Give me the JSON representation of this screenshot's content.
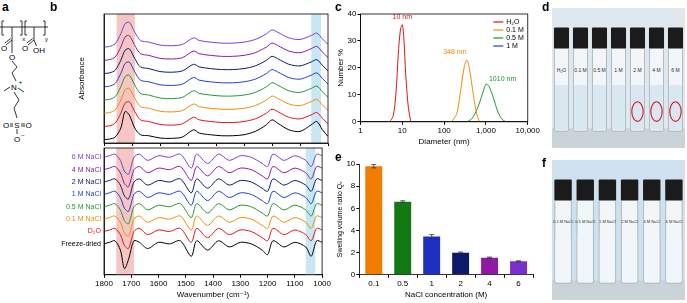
{
  "panel_labels": [
    "a",
    "b",
    "c",
    "d",
    "e",
    "f"
  ],
  "structure": {
    "texts": [
      "O",
      "O",
      "O",
      "OH",
      "N",
      "+",
      "S",
      "O",
      "O",
      "O",
      "−",
      "x",
      "y"
    ]
  },
  "chart_data": [
    {
      "type": "line",
      "xlim": [
        1800,
        1000
      ],
      "xticks": [
        1800,
        1700,
        1600,
        1500,
        1400,
        1300,
        1200,
        1100,
        1000
      ],
      "ylim": [
        0,
        3.9
      ],
      "ylabel": "Absorbance",
      "tick_labels": false,
      "highlights": [
        {
          "xlim": [
            1755,
            1690
          ],
          "color": "#f5c6c3"
        },
        {
          "xlim": [
            1060,
            1025
          ],
          "color": "#c9e6f4"
        }
      ],
      "x": [
        1800,
        1780,
        1760,
        1740,
        1725,
        1710,
        1690,
        1670,
        1640,
        1600,
        1560,
        1520,
        1480,
        1460,
        1420,
        1380,
        1340,
        1300,
        1260,
        1220,
        1200,
        1180,
        1140,
        1100,
        1060,
        1040,
        1020,
        1000
      ],
      "series": [
        {
          "color": "#000000",
          "values": [
            0.1,
            0.12,
            0.18,
            0.45,
            0.95,
            0.85,
            0.45,
            0.25,
            0.22,
            0.15,
            0.14,
            0.18,
            0.4,
            0.3,
            0.25,
            0.22,
            0.22,
            0.25,
            0.35,
            0.55,
            0.7,
            0.6,
            0.4,
            0.35,
            0.55,
            0.65,
            0.4,
            0.2
          ]
        },
        {
          "color": "#e4141b",
          "values": [
            0.5,
            0.52,
            0.6,
            0.9,
            1.2,
            1.25,
            0.95,
            0.7,
            0.65,
            0.56,
            0.54,
            0.58,
            0.78,
            0.7,
            0.65,
            0.62,
            0.62,
            0.65,
            0.73,
            0.9,
            1.02,
            0.95,
            0.78,
            0.73,
            0.85,
            0.92,
            0.75,
            0.58
          ]
        },
        {
          "color": "#f28c00",
          "values": [
            0.9,
            0.92,
            1.0,
            1.3,
            1.6,
            1.65,
            1.35,
            1.1,
            1.05,
            0.96,
            0.94,
            0.98,
            1.18,
            1.1,
            1.05,
            1.02,
            1.02,
            1.05,
            1.13,
            1.3,
            1.42,
            1.35,
            1.18,
            1.13,
            1.25,
            1.32,
            1.15,
            0.98
          ]
        },
        {
          "color": "#1f9a2e",
          "values": [
            1.3,
            1.32,
            1.4,
            1.7,
            2.0,
            2.05,
            1.75,
            1.5,
            1.45,
            1.36,
            1.34,
            1.38,
            1.58,
            1.5,
            1.45,
            1.42,
            1.42,
            1.45,
            1.53,
            1.7,
            1.82,
            1.75,
            1.58,
            1.53,
            1.65,
            1.72,
            1.55,
            1.38
          ]
        },
        {
          "color": "#1f3fd6",
          "values": [
            1.7,
            1.72,
            1.8,
            2.1,
            2.4,
            2.45,
            2.15,
            1.9,
            1.85,
            1.76,
            1.74,
            1.78,
            1.98,
            1.9,
            1.85,
            1.82,
            1.82,
            1.85,
            1.93,
            2.1,
            2.22,
            2.15,
            1.98,
            1.93,
            2.05,
            2.12,
            1.95,
            1.78
          ]
        },
        {
          "color": "#0b1a6e",
          "values": [
            2.1,
            2.12,
            2.2,
            2.5,
            2.8,
            2.85,
            2.55,
            2.3,
            2.25,
            2.16,
            2.14,
            2.18,
            2.38,
            2.3,
            2.25,
            2.22,
            2.22,
            2.25,
            2.33,
            2.5,
            2.62,
            2.55,
            2.38,
            2.33,
            2.45,
            2.52,
            2.35,
            2.18
          ]
        },
        {
          "color": "#8e1aa3",
          "values": [
            2.5,
            2.52,
            2.6,
            2.9,
            3.2,
            3.25,
            2.95,
            2.7,
            2.65,
            2.56,
            2.54,
            2.58,
            2.78,
            2.7,
            2.65,
            2.62,
            2.62,
            2.65,
            2.73,
            2.9,
            3.02,
            2.95,
            2.78,
            2.73,
            2.85,
            2.92,
            2.75,
            2.58
          ]
        },
        {
          "color": "#7a3fd8",
          "values": [
            2.9,
            2.92,
            3.0,
            3.3,
            3.6,
            3.65,
            3.35,
            3.1,
            3.05,
            2.96,
            2.94,
            2.98,
            3.18,
            3.1,
            3.05,
            3.02,
            3.02,
            3.05,
            3.13,
            3.3,
            3.42,
            3.35,
            3.18,
            3.13,
            3.25,
            3.32,
            3.15,
            2.98
          ]
        }
      ]
    },
    {
      "type": "line",
      "xlim": [
        1800,
        1000
      ],
      "xticks": [
        1800,
        1700,
        1600,
        1500,
        1400,
        1300,
        1200,
        1100,
        1000
      ],
      "ylim": [
        -1,
        3.1
      ],
      "xlabel": "Wavenumber (cm⁻¹)",
      "tick_labels": "x",
      "legend": "left",
      "highlights": [
        {
          "xlim": [
            1755,
            1690
          ],
          "color": "#f5c6c3"
        },
        {
          "xlim": [
            1060,
            1025
          ],
          "color": "#c9e6f4"
        }
      ],
      "x": [
        1800,
        1780,
        1760,
        1740,
        1725,
        1710,
        1690,
        1670,
        1640,
        1600,
        1560,
        1520,
        1480,
        1460,
        1420,
        1380,
        1340,
        1300,
        1260,
        1220,
        1200,
        1180,
        1140,
        1100,
        1060,
        1040,
        1020,
        1000
      ],
      "series": [
        {
          "name": "Freeze-dried",
          "color": "#000000",
          "values": [
            0,
            0.05,
            0.1,
            -0.2,
            -0.8,
            -0.5,
            0.1,
            0.05,
            -0.15,
            0.05,
            0,
            0.1,
            -0.4,
            0.1,
            -0.2,
            0.1,
            -0.1,
            0.05,
            0,
            -0.2,
            -0.35,
            0.1,
            -0.1,
            0.05,
            -0.1,
            -0.4,
            0.1,
            0.05
          ]
        },
        {
          "name": "D₂O",
          "color": "#e4141b",
          "values": [
            0.4,
            0.45,
            0.5,
            0.3,
            -0.05,
            -0.15,
            0.4,
            0.5,
            0.3,
            0.45,
            0.4,
            0.5,
            0.05,
            0.5,
            0.2,
            0.5,
            0.3,
            0.45,
            0.4,
            0.2,
            0.1,
            0.5,
            0.3,
            0.45,
            0.3,
            0.1,
            0.5,
            0.45
          ]
        },
        {
          "name": "0.1 M NaCl",
          "color": "#f28c00",
          "values": [
            0.8,
            0.85,
            0.9,
            0.7,
            0.35,
            0.25,
            0.8,
            0.9,
            0.7,
            0.85,
            0.8,
            0.9,
            0.45,
            0.9,
            0.6,
            0.9,
            0.7,
            0.85,
            0.8,
            0.6,
            0.5,
            0.9,
            0.7,
            0.85,
            0.7,
            0.5,
            0.9,
            0.85
          ]
        },
        {
          "name": "0.5 M NaCl",
          "color": "#1f9a2e",
          "values": [
            1.2,
            1.25,
            1.3,
            1.1,
            0.75,
            0.65,
            1.2,
            1.3,
            1.1,
            1.25,
            1.2,
            1.3,
            0.85,
            1.3,
            1.0,
            1.3,
            1.1,
            1.25,
            1.2,
            1.0,
            0.9,
            1.3,
            1.1,
            1.25,
            1.1,
            0.9,
            1.3,
            1.25
          ]
        },
        {
          "name": "1 M NaCl",
          "color": "#1f3fd6",
          "values": [
            1.6,
            1.65,
            1.7,
            1.5,
            1.15,
            1.05,
            1.6,
            1.7,
            1.5,
            1.65,
            1.6,
            1.7,
            1.25,
            1.7,
            1.4,
            1.7,
            1.5,
            1.65,
            1.6,
            1.4,
            1.3,
            1.7,
            1.5,
            1.65,
            1.5,
            1.3,
            1.7,
            1.65
          ]
        },
        {
          "name": "2 M NaCl",
          "color": "#0b1a6e",
          "values": [
            2.0,
            2.05,
            2.1,
            1.9,
            1.55,
            1.45,
            2.0,
            2.1,
            1.9,
            2.05,
            2.0,
            2.1,
            1.65,
            2.1,
            1.8,
            2.1,
            1.9,
            2.05,
            2.0,
            1.8,
            1.7,
            2.1,
            1.9,
            2.05,
            1.9,
            1.7,
            2.1,
            2.05
          ]
        },
        {
          "name": "4 M NaCl",
          "color": "#8e1aa3",
          "values": [
            2.4,
            2.45,
            2.5,
            2.3,
            1.95,
            1.85,
            2.4,
            2.5,
            2.3,
            2.45,
            2.4,
            2.5,
            2.05,
            2.5,
            2.2,
            2.5,
            2.3,
            2.45,
            2.4,
            2.2,
            2.1,
            2.5,
            2.3,
            2.45,
            2.3,
            2.1,
            2.5,
            2.45
          ]
        },
        {
          "name": "6 M NaCl",
          "color": "#7a3fd8",
          "values": [
            2.8,
            2.85,
            2.9,
            2.7,
            2.35,
            2.25,
            2.8,
            2.9,
            2.7,
            2.85,
            2.8,
            2.9,
            2.45,
            2.9,
            2.6,
            2.9,
            2.7,
            2.85,
            2.8,
            2.6,
            2.5,
            2.9,
            2.7,
            2.85,
            2.7,
            2.5,
            2.9,
            2.85
          ]
        }
      ]
    },
    {
      "type": "line",
      "log": "x",
      "xlim": [
        1,
        10000
      ],
      "xticks": [
        1,
        10,
        100,
        {
          "value": 1000,
          "label": "1,000"
        },
        {
          "value": 10000,
          "label": "10,000"
        }
      ],
      "ylim": [
        0,
        40
      ],
      "yticks": [
        0,
        10,
        20,
        30,
        40
      ],
      "xlabel": "Diameter (nm)",
      "ylabel": "Number %",
      "legend": "upper right",
      "annotations": [
        {
          "text": "10 nm",
          "x": 10,
          "y": 39,
          "color": "#e4141b"
        },
        {
          "text": "348 nm",
          "x": 180,
          "y": 26,
          "color": "#f28c00"
        },
        {
          "text": "1010 nm",
          "x": 2500,
          "y": 16,
          "color": "#1f9a2e"
        }
      ],
      "series": [
        {
          "name": "H₂O",
          "color": "#e4141b",
          "x": [
            5,
            6,
            7,
            8,
            9,
            10,
            11,
            12,
            14,
            16
          ],
          "values": [
            0,
            2,
            10,
            25,
            34,
            36,
            30,
            18,
            5,
            0
          ]
        },
        {
          "name": "0.1 M",
          "color": "#f28c00",
          "x": [
            150,
            200,
            250,
            300,
            348,
            400,
            500,
            600,
            700
          ],
          "values": [
            0,
            3,
            12,
            20,
            23,
            20,
            10,
            3,
            0
          ]
        },
        {
          "name": "0.5 M",
          "color": "#1f9a2e",
          "x": [
            350,
            450,
            550,
            700,
            850,
            1010,
            1200,
            1500,
            1900,
            2400,
            3000
          ],
          "values": [
            0,
            1,
            3,
            7,
            11,
            14,
            13,
            9,
            4,
            1,
            0
          ]
        },
        {
          "name": "1 M",
          "color": "#1f3fd6",
          "x": [],
          "values": []
        }
      ]
    },
    {
      "type": "bar",
      "categories": [
        "0.1",
        "0.5",
        "1",
        "2",
        "4",
        "6"
      ],
      "values": [
        9.8,
        6.6,
        3.45,
        2.0,
        1.55,
        1.22
      ],
      "errors": [
        0.15,
        0.08,
        0.18,
        0.05,
        0.05,
        0.04
      ],
      "colors": [
        "#f07d00",
        "#127a12",
        "#1f2fc0",
        "#0d1a6b",
        "#8e1aa3",
        "#7a2fd0"
      ],
      "ylim": [
        0,
        10
      ],
      "yticks": [
        0,
        2,
        4,
        6,
        8,
        10
      ],
      "xlabel": "NaCl concentration (M)",
      "ylabel": "Swelling volume ratio Qᵥ"
    }
  ],
  "photo_d": {
    "labels": [
      "H₂O",
      "0.1 M",
      "0.5 M",
      "1 M",
      "2 M",
      "4 M",
      "6 M"
    ],
    "circled": [
      false,
      false,
      false,
      false,
      true,
      true,
      true
    ]
  },
  "photo_f": {
    "labels": [
      "0.1 M NaCl",
      "0.5 M NaCl",
      "1 M NaCl",
      "2 M NaCl",
      "4 M NaCl",
      "6 M NaCl"
    ]
  }
}
